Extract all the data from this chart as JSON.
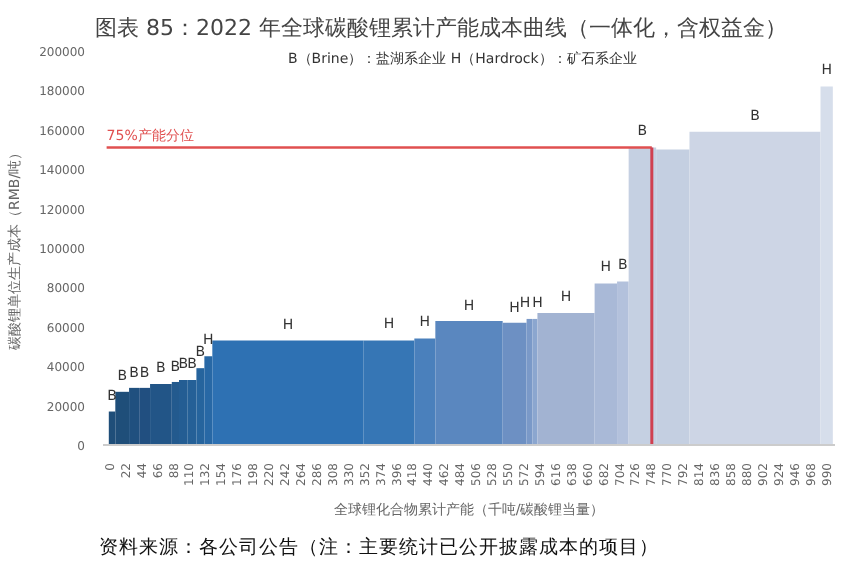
{
  "chart_data": {
    "type": "area",
    "title": "图表 85：2022 年全球碳酸锂累计产能成本曲线（一体化，含权益金）",
    "xlabel": "全球锂化合物累计产能（千吨/碳酸锂当量）",
    "ylabel": "碳酸锂单位生产成本（RMB/吨）",
    "xlim": [
      -8,
      1003
    ],
    "ylim": [
      0,
      200000
    ],
    "xticks": [
      0,
      22,
      44,
      66,
      88,
      110,
      132,
      154,
      176,
      198,
      220,
      242,
      264,
      286,
      308,
      330,
      352,
      374,
      396,
      418,
      440,
      462,
      484,
      506,
      528,
      550,
      572,
      594,
      616,
      638,
      660,
      682,
      704,
      726,
      748,
      770,
      792,
      814,
      836,
      858,
      880,
      902,
      924,
      946,
      968,
      990
    ],
    "yticks": [
      0,
      20000,
      40000,
      60000,
      80000,
      100000,
      120000,
      140000,
      160000,
      180000,
      200000
    ],
    "grid": false,
    "series": [
      {
        "x": [
          0,
          9
        ],
        "values": [
          17000,
          17000
        ],
        "color": "#1f4e79"
      },
      {
        "x": [
          9,
          28
        ],
        "values": [
          27000,
          27000
        ],
        "color": "#1f4e79"
      },
      {
        "x": [
          28,
          42
        ],
        "values": [
          29000,
          29000
        ],
        "color": "#20507f"
      },
      {
        "x": [
          42,
          57
        ],
        "values": [
          29000,
          29000
        ],
        "color": "#214f80"
      },
      {
        "x": [
          57,
          87
        ],
        "values": [
          31000,
          31000
        ],
        "color": "#225587"
      },
      {
        "x": [
          87,
          97
        ],
        "values": [
          32000,
          32000
        ],
        "color": "#235a8e"
      },
      {
        "x": [
          97,
          109
        ],
        "values": [
          33000,
          33000
        ],
        "color": "#245d93"
      },
      {
        "x": [
          109,
          121
        ],
        "values": [
          33000,
          33000
        ],
        "color": "#256097"
      },
      {
        "x": [
          121,
          132
        ],
        "values": [
          39000,
          39000
        ],
        "color": "#26649d"
      },
      {
        "x": [
          132,
          143
        ],
        "values": [
          45000,
          45000
        ],
        "color": "#2868a5"
      },
      {
        "x": [
          143,
          352
        ],
        "values": [
          53000,
          53000
        ],
        "color": "#2e71b3"
      },
      {
        "x": [
          352,
          422
        ],
        "values": [
          53000,
          53000
        ],
        "color": "#3676b5"
      },
      {
        "x": [
          422,
          451
        ],
        "values": [
          54000,
          54000
        ],
        "color": "#4a80bc"
      },
      {
        "x": [
          451,
          544
        ],
        "values": [
          63000,
          63000
        ],
        "color": "#5a87bf"
      },
      {
        "x": [
          544,
          577
        ],
        "values": [
          62000,
          62000
        ],
        "color": "#6d90c3"
      },
      {
        "x": [
          577,
          585
        ],
        "values": [
          64000,
          64000
        ],
        "color": "#7a99c8"
      },
      {
        "x": [
          585,
          592
        ],
        "values": [
          64000,
          64000
        ],
        "color": "#8ba6cf"
      },
      {
        "x": [
          592,
          671
        ],
        "values": [
          67000,
          67000
        ],
        "color": "#a2b3d2"
      },
      {
        "x": [
          671,
          702
        ],
        "values": [
          82000,
          82000
        ],
        "color": "#a9b9d7"
      },
      {
        "x": [
          702,
          718
        ],
        "values": [
          83000,
          83000
        ],
        "color": "#b3c1dc"
      },
      {
        "x": [
          718,
          756
        ],
        "values": [
          151000,
          151000
        ],
        "color": "#c5d0e2"
      },
      {
        "x": [
          756,
          802
        ],
        "values": [
          150000,
          150000
        ],
        "color": "#c4cfe1"
      },
      {
        "x": [
          802,
          983
        ],
        "values": [
          159000,
          159000
        ],
        "color": "#cdd5e5"
      },
      {
        "x": [
          983,
          1000
        ],
        "values": [
          182000,
          182000
        ],
        "color": "#d6deeb"
      }
    ],
    "ref_lines": [
      {
        "axis": "y",
        "value": 151000,
        "label": "75%产能分位",
        "color": "#e05050"
      },
      {
        "axis": "x",
        "value": 750,
        "color": "#d04050"
      }
    ],
    "annotations": [
      "B（Brine）：盐湖系企业    H（Hardrock）：矿石系企业",
      {
        "text": "B",
        "x": 4.5,
        "y": 17000
      },
      {
        "text": "B",
        "x": 18.5,
        "y": 27000
      },
      {
        "text": "B",
        "x": 35,
        "y": 28600
      },
      {
        "text": "B",
        "x": 49.5,
        "y": 28600
      },
      {
        "text": "B",
        "x": 72,
        "y": 30900
      },
      {
        "text": "B",
        "x": 92,
        "y": 31700
      },
      {
        "text": "B",
        "x": 103,
        "y": 33200
      },
      {
        "text": "B",
        "x": 115,
        "y": 33200
      },
      {
        "text": "B",
        "x": 126.5,
        "y": 39300
      },
      {
        "text": "H",
        "x": 137.5,
        "y": 45400
      },
      {
        "text": "H",
        "x": 247.5,
        "y": 52700
      },
      {
        "text": "H",
        "x": 387,
        "y": 53400
      },
      {
        "text": "H",
        "x": 436.5,
        "y": 54200
      },
      {
        "text": "H",
        "x": 497.5,
        "y": 62600
      },
      {
        "text": "H",
        "x": 560.5,
        "y": 61500
      },
      {
        "text": "H",
        "x": 575,
        "y": 64000
      },
      {
        "text": "H",
        "x": 592,
        "y": 64000
      },
      {
        "text": "H",
        "x": 631.5,
        "y": 66800
      },
      {
        "text": "H",
        "x": 686.5,
        "y": 82100
      },
      {
        "text": "B",
        "x": 710,
        "y": 83200
      },
      {
        "text": "B",
        "x": 737,
        "y": 151100
      },
      {
        "text": "B",
        "x": 892.5,
        "y": 158800
      },
      {
        "text": "H",
        "x": 991.5,
        "y": 182100
      },
      "资料来源：各公司公告（注：主要统计已公开披露成本的项目）"
    ]
  }
}
